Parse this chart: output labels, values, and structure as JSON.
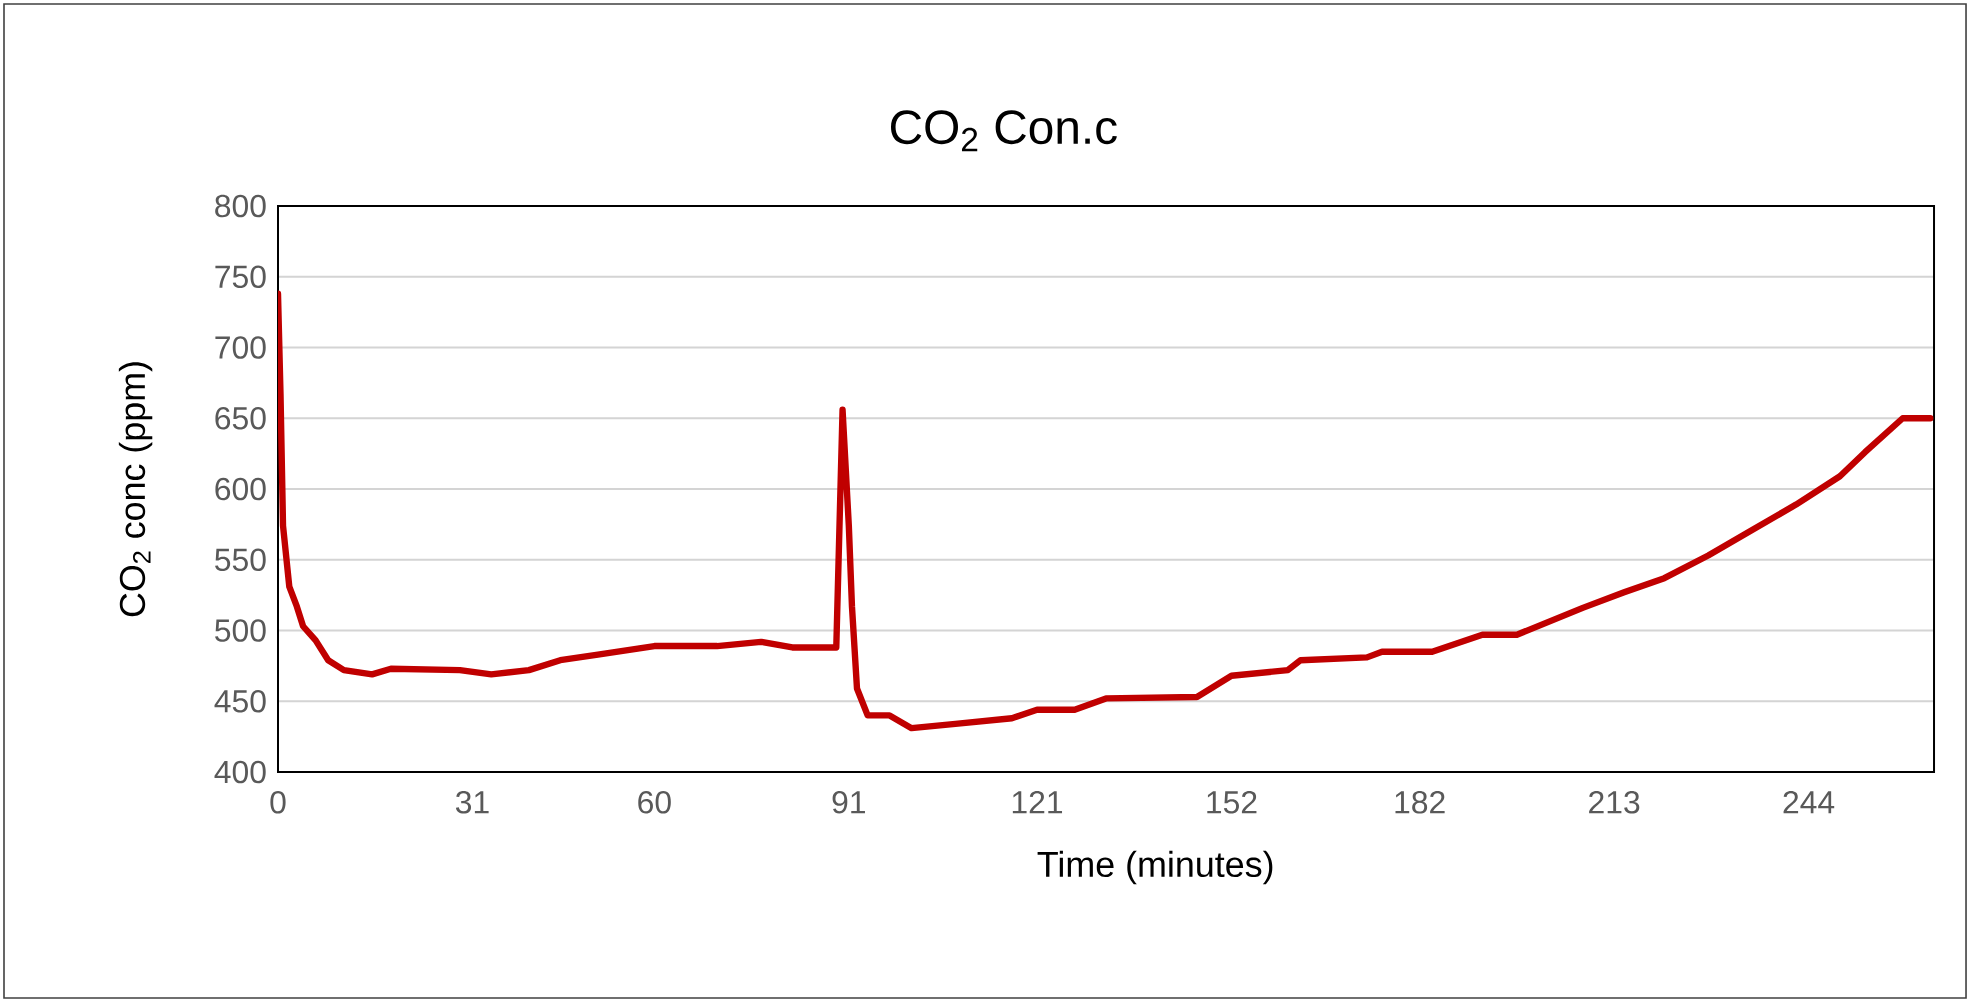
{
  "chart_data": {
    "type": "line",
    "title": "CO$_{2}$ Con.c",
    "xlabel": "Time (minutes)",
    "ylabel": "CO$_{2}$ conc (ppm)",
    "x": [
      0,
      0.4,
      0.8,
      1.8,
      3,
      4,
      6,
      8,
      10.5,
      15,
      18,
      29,
      34,
      40,
      45,
      51,
      60,
      70,
      77,
      82,
      89,
      90,
      91,
      91.5,
      92.3,
      94,
      97.5,
      101,
      108,
      117,
      121,
      127,
      132,
      146.5,
      152,
      161,
      163,
      173.6,
      176,
      184,
      192,
      197.5,
      208,
      214.6,
      221,
      228,
      235,
      242,
      249,
      253,
      259,
      263.4
    ],
    "series": [
      {
        "color": "#c00000",
        "values": [
          738,
          667,
          574,
          531,
          517,
          503,
          493,
          479,
          472,
          469,
          473,
          472,
          469,
          472,
          479,
          483,
          489,
          489,
          492,
          488,
          488,
          656,
          574,
          517,
          459,
          440,
          440,
          431,
          434,
          438,
          444,
          444,
          452,
          453,
          468,
          472,
          479,
          481,
          485,
          485,
          497,
          497,
          516,
          527,
          537,
          553,
          571,
          589,
          609,
          626,
          650,
          650
        ]
      }
    ],
    "xlim": [
      0,
      264
    ],
    "xticks": [
      0,
      31,
      60,
      91,
      121,
      152,
      182,
      213,
      244
    ],
    "ylim": [
      400,
      800
    ],
    "yticks": [
      400,
      450,
      500,
      550,
      600,
      650,
      700,
      750,
      800
    ],
    "grid": "y",
    "legend": false,
    "marker": "none",
    "line_style": "solid"
  }
}
